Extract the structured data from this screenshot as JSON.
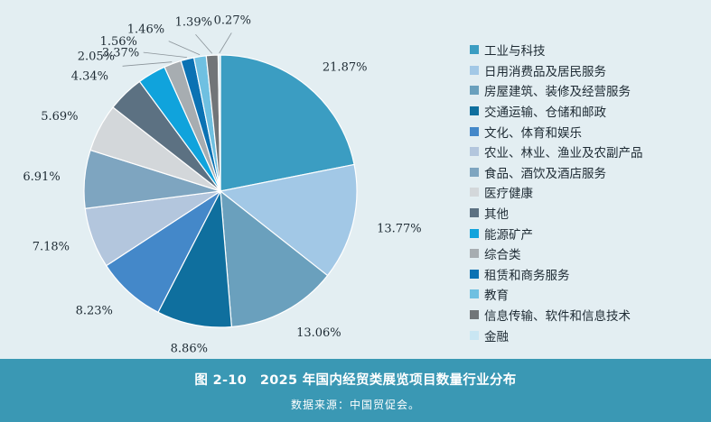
{
  "chart_data": {
    "type": "pie",
    "title": "",
    "start_angle_deg": 0,
    "direction": "clockwise",
    "legend_position": "right",
    "slices": [
      {
        "label": "工业与科技",
        "value": 21.87,
        "value_label": "21.87%",
        "color": "#3b9dc2"
      },
      {
        "label": "日用消费品及居民服务",
        "value": 13.77,
        "value_label": "13.77%",
        "color": "#a2c8e6"
      },
      {
        "label": "房屋建筑、装修及经营服务",
        "value": 13.06,
        "value_label": "13.06%",
        "color": "#6aa0bd"
      },
      {
        "label": "交通运输、仓储和邮政",
        "value": 8.86,
        "value_label": "8.86%",
        "color": "#0f6f9e"
      },
      {
        "label": "文化、体育和娱乐",
        "value": 8.23,
        "value_label": "8.23%",
        "color": "#4488c9"
      },
      {
        "label": "农业、林业、渔业及农副产品",
        "value": 7.18,
        "value_label": "7.18%",
        "color": "#b3c6dd"
      },
      {
        "label": "食品、酒饮及酒店服务",
        "value": 6.91,
        "value_label": "6.91%",
        "color": "#7ea5c0"
      },
      {
        "label": "医疗健康",
        "value": 5.69,
        "value_label": "5.69%",
        "color": "#d3d7da"
      },
      {
        "label": "其他",
        "value": 4.34,
        "value_label": "4.34%",
        "color": "#5c7182"
      },
      {
        "label": "能源矿产",
        "value": 3.37,
        "value_label": "3.37%",
        "color": "#10a3dc"
      },
      {
        "label": "综合类",
        "value": 2.05,
        "value_label": "2.05%",
        "color": "#a7adb1"
      },
      {
        "label": "租赁和商务服务",
        "value": 1.56,
        "value_label": "1.56%",
        "color": "#0b72b3"
      },
      {
        "label": "教育",
        "value": 1.46,
        "value_label": "1.46%",
        "color": "#6fc0e1"
      },
      {
        "label": "信息传输、软件和信息技术",
        "value": 1.39,
        "value_label": "1.39%",
        "color": "#717578"
      },
      {
        "label": "金融",
        "value": 0.27,
        "value_label": "0.27%",
        "color": "#c9e6f3"
      }
    ]
  },
  "footer": {
    "figure_title": "图 2-10　2025 年国内经贸类展览项目数量行业分布",
    "source": "数据来源：中国贸促会。"
  }
}
